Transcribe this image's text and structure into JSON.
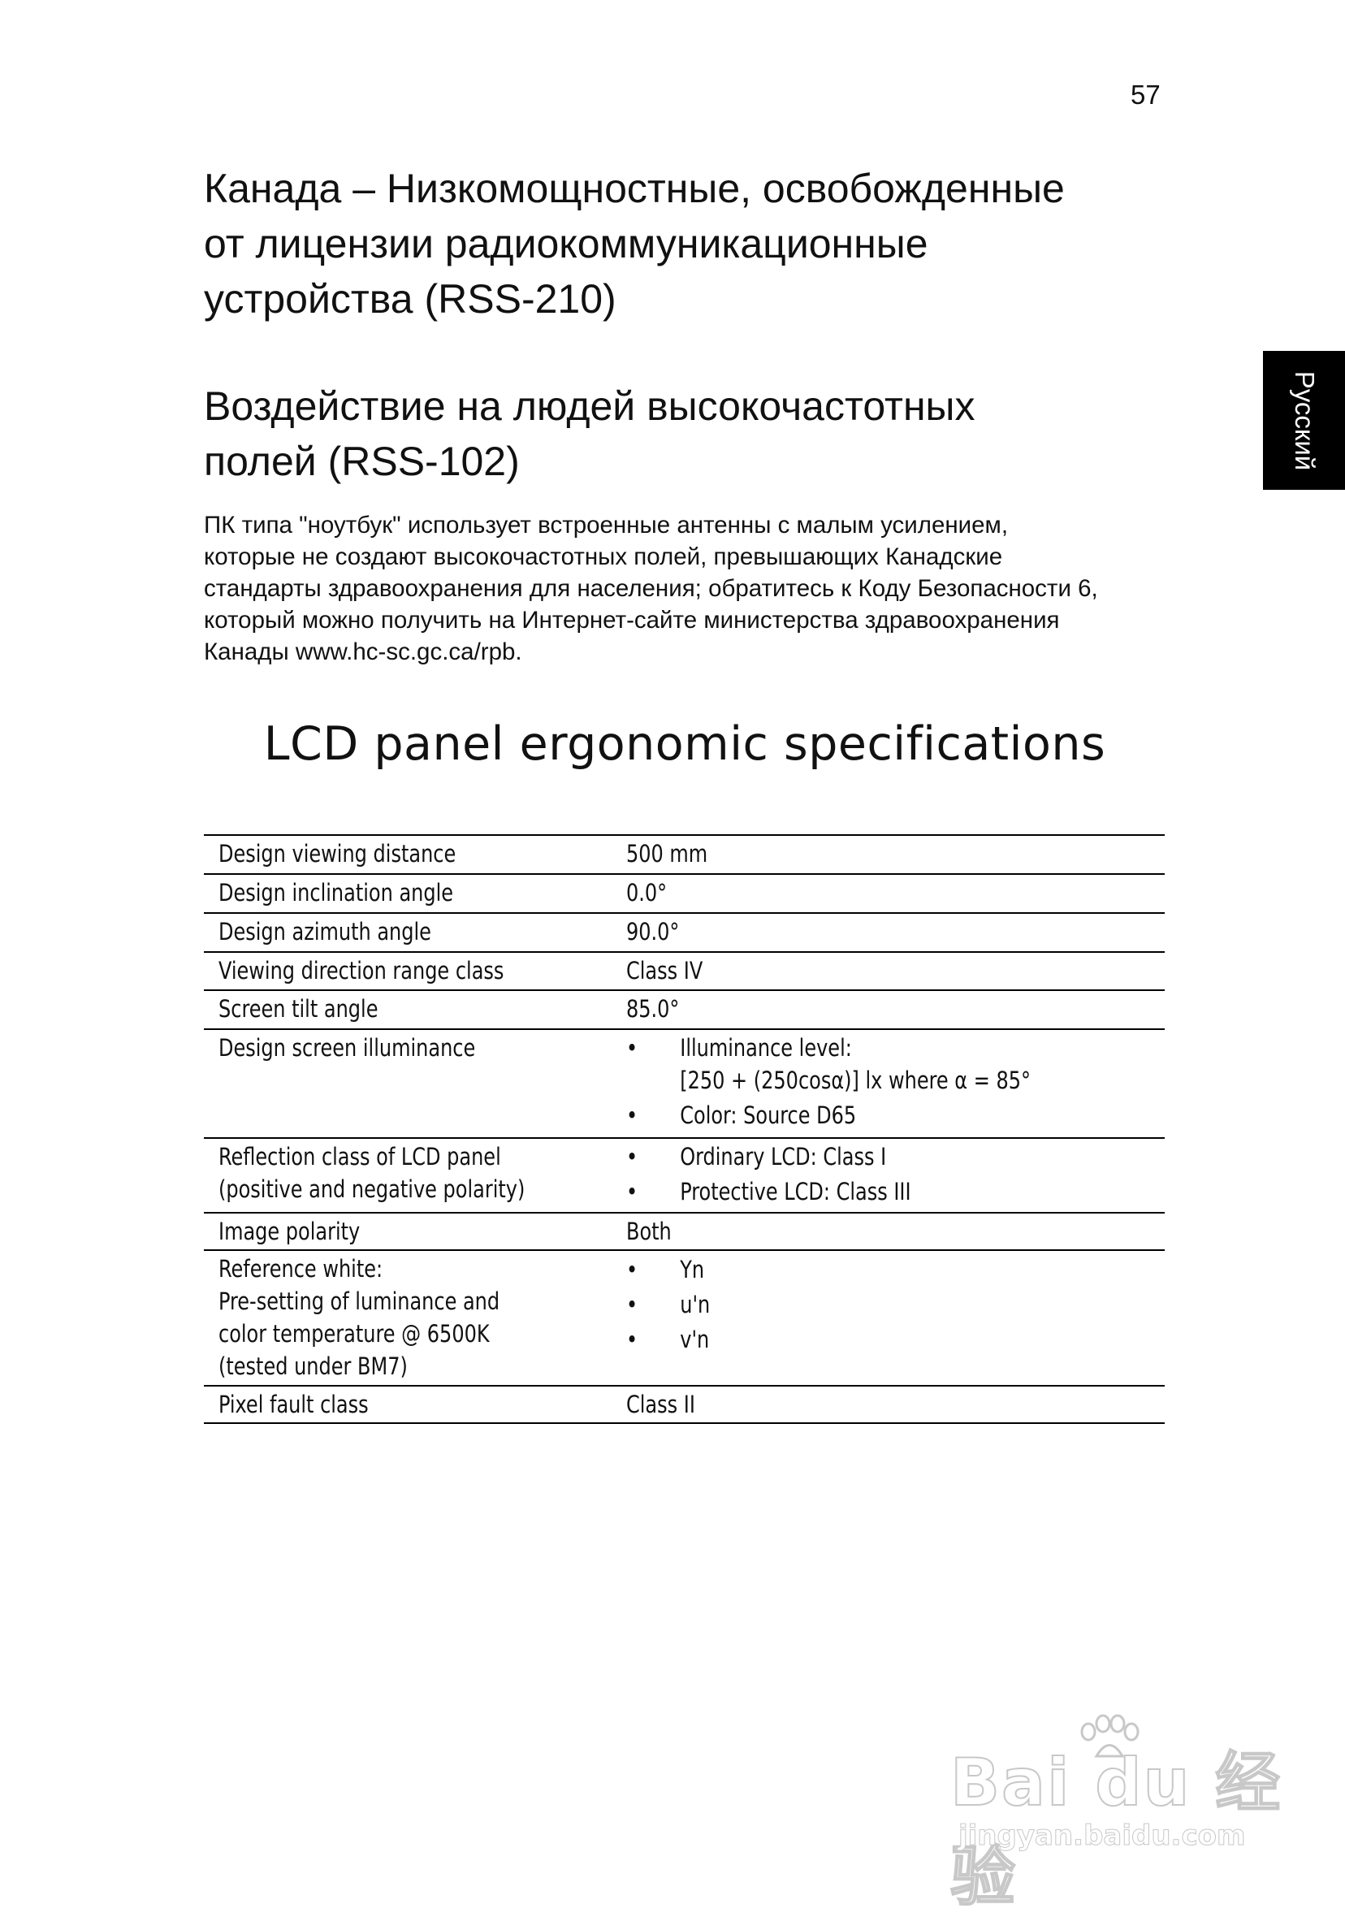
{
  "page_number": "57",
  "side_tab": "Русский",
  "heading1": [
    "Канада – Низкомощностные, освобожденные",
    "от лицензии радиокоммуникационные",
    "устройства (RSS-210)"
  ],
  "heading2": [
    "Воздействие на людей высокочастотных",
    "полей (RSS-102)"
  ],
  "paragraph": [
    "ПК типа \"ноутбук\" использует встроенные антенны с малым усилением,",
    "которые не создают высокочастотных полей, превышающих Канадские",
    "стандарты здравоохранения для населения; обратитесь к Коду Безопасности 6,",
    "который можно получить на Интернет-сайте министерства здравоохранения",
    "Канады www.hc-sc.gc.ca/rpb."
  ],
  "lcd_title": "LCD panel ergonomic specifications",
  "table": {
    "rows": [
      {
        "label": [
          "Design viewing distance"
        ],
        "value": "500 mm"
      },
      {
        "label": [
          "Design inclination angle"
        ],
        "value": "0.0°"
      },
      {
        "label": [
          "Design azimuth angle"
        ],
        "value": "90.0°"
      },
      {
        "label": [
          "Viewing direction range class"
        ],
        "value": "Class IV"
      },
      {
        "label": [
          "Screen tilt angle"
        ],
        "value": "85.0°"
      },
      {
        "label": [
          "Design screen illuminance"
        ],
        "bullets": [
          [
            "Illuminance level:",
            "[250 + (250cosα)] lx where α = 85°"
          ],
          [
            "Color: Source D65"
          ]
        ]
      },
      {
        "label": [
          "Reflection class of LCD panel",
          "(positive and negative polarity)"
        ],
        "bullets": [
          [
            "Ordinary LCD: Class I"
          ],
          [
            "Protective LCD: Class III"
          ]
        ]
      },
      {
        "label": [
          "Image polarity"
        ],
        "value": "Both"
      },
      {
        "label": [
          "Reference white:",
          "Pre-setting of luminance and",
          "color temperature @ 6500K",
          "(tested under BM7)"
        ],
        "bullets": [
          [
            "Yn"
          ],
          [
            "u'n"
          ],
          [
            "v'n"
          ]
        ]
      },
      {
        "label": [
          "Pixel fault class"
        ],
        "value": "Class II"
      }
    ],
    "bullet_char": "•"
  },
  "watermark": {
    "logo": "Bai du 经验",
    "url": "jingyan.baidu.com"
  }
}
